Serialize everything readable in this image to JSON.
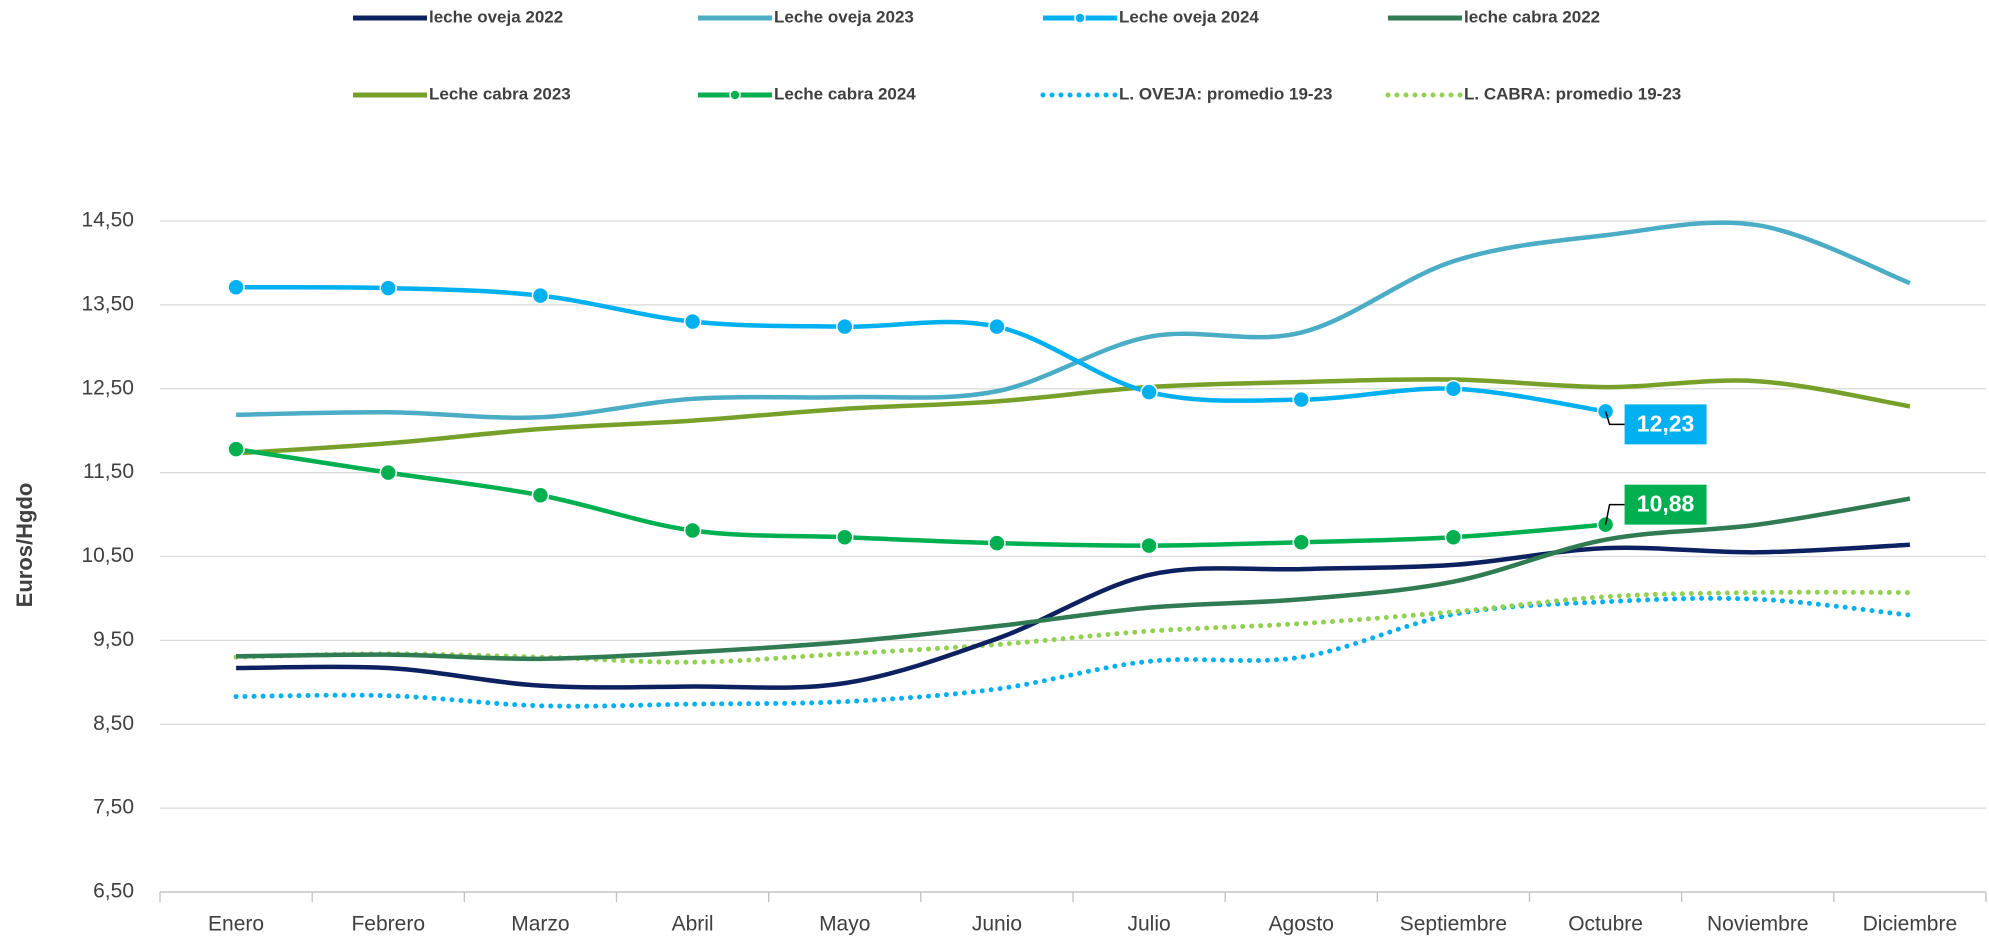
{
  "chart_data": {
    "type": "line",
    "y_label": "Euros/Hgdo",
    "categories": [
      "Enero",
      "Febrero",
      "Marzo",
      "Abril",
      "Mayo",
      "Junio",
      "Julio",
      "Agosto",
      "Septiembre",
      "Octubre",
      "Noviembre",
      "Diciembre"
    ],
    "ylim": [
      6.5,
      14.5
    ],
    "yticks": [
      {
        "value": 6.5,
        "label": "6,50"
      },
      {
        "value": 7.5,
        "label": "7,50"
      },
      {
        "value": 8.5,
        "label": "8,50"
      },
      {
        "value": 9.5,
        "label": "9,50"
      },
      {
        "value": 10.5,
        "label": "10,50"
      },
      {
        "value": 11.5,
        "label": "11,50"
      },
      {
        "value": 12.5,
        "label": "12,50"
      },
      {
        "value": 13.5,
        "label": "13,50"
      },
      {
        "value": 14.5,
        "label": "14,50"
      }
    ],
    "grid": true,
    "legend": "top",
    "series": [
      {
        "name": "leche oveja 2022",
        "color": "#0d2060",
        "values": [
          9.17,
          9.17,
          8.96,
          8.95,
          8.99,
          9.52,
          10.28,
          10.35,
          10.4,
          10.6,
          10.55,
          10.64
        ]
      },
      {
        "name": "Leche oveja 2023",
        "color": "#4bacc6",
        "values": [
          12.19,
          12.22,
          12.16,
          12.38,
          12.4,
          12.47,
          13.12,
          13.17,
          14.02,
          14.33,
          14.45,
          13.76
        ]
      },
      {
        "name": "Leche oveja 2024",
        "color": "#00b0f0",
        "markers": true,
        "values": [
          13.71,
          13.7,
          13.61,
          13.3,
          13.24,
          13.24,
          12.46,
          12.37,
          12.5,
          12.23,
          null,
          null
        ],
        "value_labels": [
          null,
          null,
          null,
          null,
          null,
          null,
          null,
          null,
          null,
          "12,23",
          null,
          null
        ]
      },
      {
        "name": "leche cabra 2022",
        "color": "#317b52",
        "values": [
          9.31,
          9.33,
          9.28,
          9.36,
          9.48,
          9.67,
          9.89,
          9.99,
          10.2,
          10.7,
          10.88,
          11.19
        ]
      },
      {
        "name": "Leche cabra 2023",
        "color": "#77a02a",
        "values": [
          11.73,
          11.85,
          12.02,
          12.12,
          12.26,
          12.35,
          12.52,
          12.58,
          12.61,
          12.52,
          12.59,
          12.29
        ]
      },
      {
        "name": "Leche cabra 2024",
        "color": "#00b050",
        "markers": true,
        "values": [
          11.78,
          11.5,
          11.23,
          10.81,
          10.73,
          10.66,
          10.63,
          10.67,
          10.73,
          10.88,
          null,
          null
        ],
        "value_labels": [
          null,
          null,
          null,
          null,
          null,
          null,
          null,
          null,
          null,
          "10,88",
          null,
          null
        ]
      },
      {
        "name": "L. OVEJA: promedio 19-23",
        "color": "#00b0f0",
        "line_style": "dotted",
        "values": [
          8.83,
          8.84,
          8.72,
          8.74,
          8.77,
          8.92,
          9.25,
          9.3,
          9.81,
          9.96,
          9.99,
          9.8
        ]
      },
      {
        "name": "L. CABRA: promedio 19-23",
        "color": "#92d050",
        "line_style": "dotted",
        "values": [
          9.3,
          9.34,
          9.3,
          9.24,
          9.34,
          9.45,
          9.61,
          9.7,
          9.84,
          10.02,
          10.07,
          10.07
        ]
      }
    ]
  }
}
